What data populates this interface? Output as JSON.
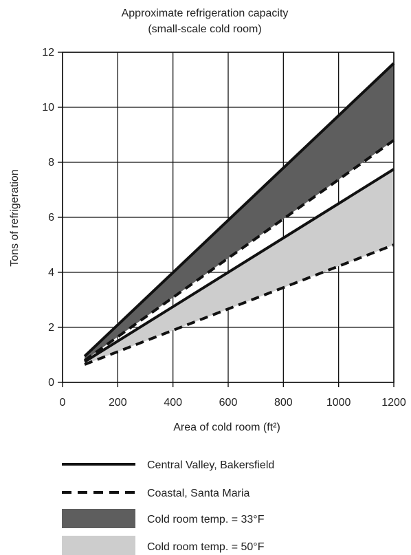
{
  "chart_data": {
    "type": "area",
    "title": "Approximate refrigeration capacity",
    "subtitle": "(small-scale cold room)",
    "xlabel": "Area of cold room (ft²)",
    "ylabel": "Tons of refrigeration",
    "xlim": [
      0,
      1200
    ],
    "ylim": [
      0,
      12
    ],
    "xticks": [
      "0",
      "200",
      "400",
      "600",
      "800",
      "1000",
      "1200"
    ],
    "yticks": [
      "0",
      "2",
      "4",
      "6",
      "8",
      "10",
      "12"
    ],
    "grid": true,
    "lines": {
      "central_valley_33F": {
        "x": [
          80,
          1200
        ],
        "y": [
          0.95,
          11.6
        ]
      },
      "coastal_33F": {
        "x": [
          80,
          1200
        ],
        "y": [
          0.8,
          8.8
        ]
      },
      "central_valley_50F": {
        "x": [
          80,
          1200
        ],
        "y": [
          0.75,
          7.75
        ]
      },
      "coastal_50F": {
        "x": [
          80,
          1200
        ],
        "y": [
          0.65,
          5.0
        ]
      }
    },
    "colors": {
      "band_33F": "#5e5e5e",
      "band_50F": "#cdcdcd",
      "line": "#111111"
    },
    "legend": [
      {
        "label": "Central Valley, Bakersfield",
        "style": "solid-line"
      },
      {
        "label": "Coastal, Santa Maria",
        "style": "dashed-line"
      },
      {
        "label": "Cold room temp. = 33°F",
        "style": "dark-fill"
      },
      {
        "label": "Cold room temp. = 50°F",
        "style": "light-fill"
      }
    ],
    "legend_placement": "bottom"
  }
}
